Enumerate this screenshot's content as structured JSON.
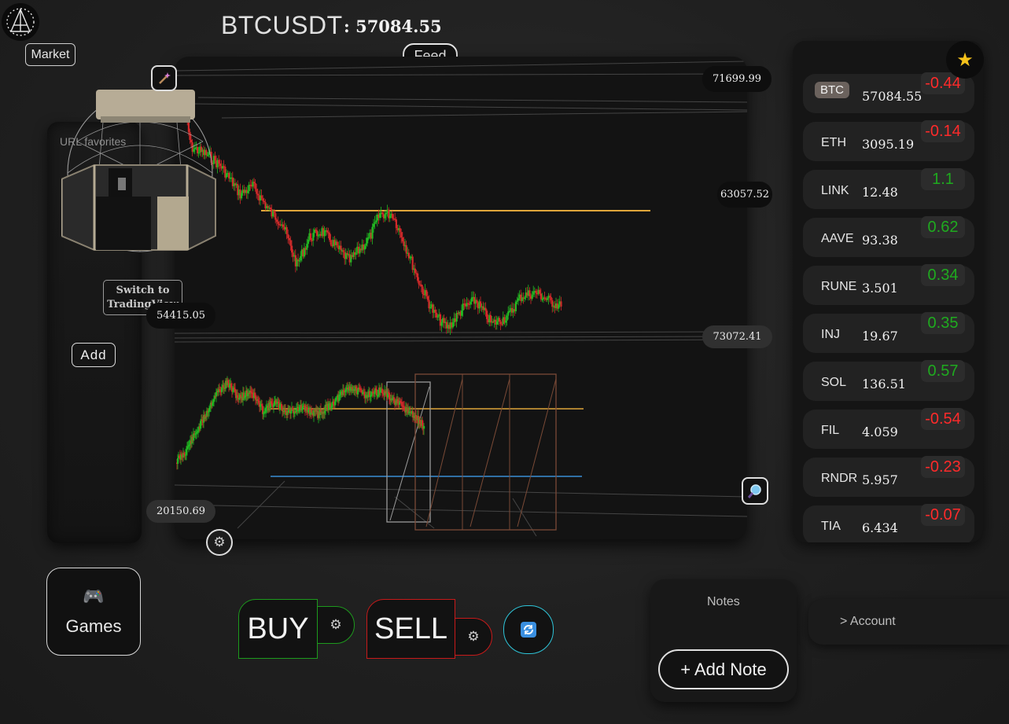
{
  "header": {
    "symbol": "BTCUSDT",
    "separator": ":",
    "price": "57084.55"
  },
  "market_button": "Market",
  "feed_button": "Feed",
  "left_panel": {
    "url_favorites": "URL favorites",
    "switch_label": "Switch to TradingView",
    "add_label": "Add"
  },
  "chart": {
    "price_labels": {
      "top": "71699.99",
      "upper": "63057.52",
      "left_mid": "54415.05",
      "right_mid": "73072.41",
      "bottom": "20150.69"
    },
    "colors": {
      "up": "#22b822",
      "down": "#d12a2a",
      "level": "#e0a63a",
      "support": "#3a8fd6",
      "wire": "#6a6a6a",
      "box": "#7a4a36"
    }
  },
  "watchlist": [
    {
      "symbol": "BTC",
      "price": "57084.55",
      "change": "-0.44",
      "active": true
    },
    {
      "symbol": "ETH",
      "price": "3095.19",
      "change": "-0.14"
    },
    {
      "symbol": "LINK",
      "price": "12.48",
      "change": "1.1"
    },
    {
      "symbol": "AAVE",
      "price": "93.38",
      "change": "0.62"
    },
    {
      "symbol": "RUNE",
      "price": "3.501",
      "change": "0.34"
    },
    {
      "symbol": "INJ",
      "price": "19.67",
      "change": "0.35"
    },
    {
      "symbol": "SOL",
      "price": "136.51",
      "change": "0.57"
    },
    {
      "symbol": "FIL",
      "price": "4.059",
      "change": "-0.54"
    },
    {
      "symbol": "RNDR",
      "price": "5.957",
      "change": "-0.23"
    },
    {
      "symbol": "TIA",
      "price": "6.434",
      "change": "-0.07"
    }
  ],
  "games_label": "Games",
  "trade": {
    "buy_label": "BUY",
    "sell_label": "SELL"
  },
  "notes": {
    "title": "Notes",
    "add_label": "+ Add Note"
  },
  "account_link": "> Account",
  "icons": {
    "logo": "pyramid-logo-icon",
    "wand": "magic-wand-icon",
    "magnify": "magnify-icon",
    "gear": "gear-icon",
    "star": "star-icon",
    "games": "gamepad-icon",
    "refresh": "refresh-icon"
  }
}
